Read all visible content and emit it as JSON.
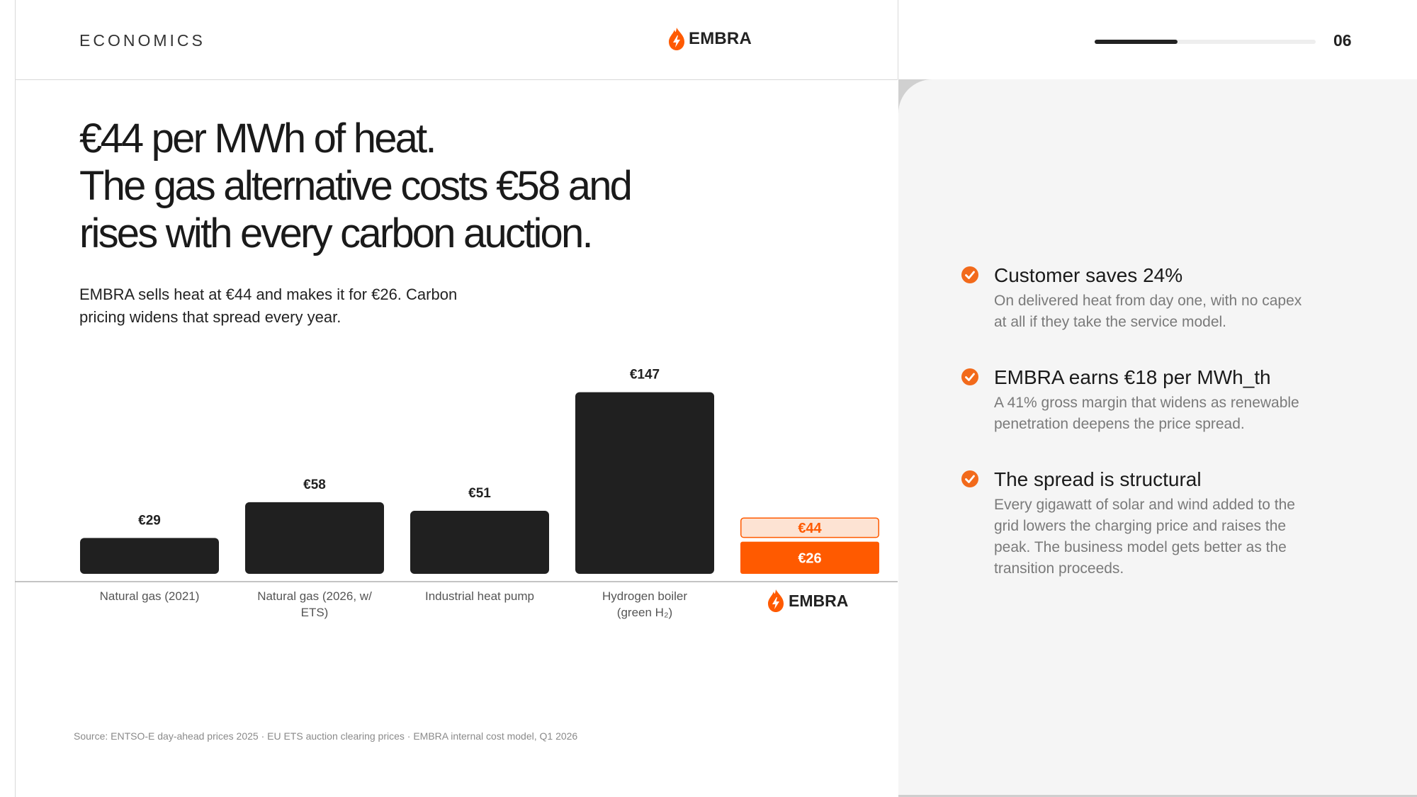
{
  "header": {
    "section_label": "ECONOMICS",
    "brand_name": "EMBRA",
    "page_number": "06",
    "progress_fraction": 0.375
  },
  "headline": [
    "€44 per MWh of heat.",
    "The gas alternative costs €58 and",
    "rises with every carbon auction."
  ],
  "lede": "EMBRA sells heat at €44 and makes it for €26. Carbon pricing widens that spread every year.",
  "chart_data": {
    "type": "bar",
    "categories": [
      [
        "Natural gas (2021)"
      ],
      [
        "Natural gas (2026, w/",
        "ETS)"
      ],
      [
        "Industrial heat pump"
      ],
      [
        "Hydrogen boiler",
        "(green H₂)"
      ],
      [
        "EMBRA"
      ]
    ],
    "values": [
      29,
      58,
      51,
      147,
      44
    ],
    "value_labels": [
      "€29",
      "€58",
      "€51",
      "€147",
      "€44"
    ],
    "embra_cost": 26,
    "embra_cost_label": "€26",
    "embra_price_label": "€44"
  },
  "source": "Source: ENTSO-E day-ahead prices 2025 · EU ETS auction clearing prices · EMBRA internal cost model, Q1 2026",
  "points": [
    {
      "title": "Customer saves 24%",
      "body": [
        "On delivered heat from day one, with no capex",
        "at all if they take the service model."
      ]
    },
    {
      "title": "EMBRA earns €18 per MWh_th",
      "body": [
        "A 41% gross margin that widens as renewable",
        "penetration deepens the price spread."
      ]
    },
    {
      "title": "The spread is structural",
      "body": [
        "Every gigawatt of solar and wind added to the",
        "grid lowers the charging price and raises the",
        "peak. The business model gets better as the",
        "transition proceeds."
      ]
    }
  ],
  "colors": {
    "accent": "#ff5a00",
    "accent_light": "#fde3d3",
    "bar_dark": "#202020",
    "check": "#f26a1b"
  },
  "icons": {
    "brand": "flame-bolt-icon",
    "bullet": "check-circle-icon"
  }
}
